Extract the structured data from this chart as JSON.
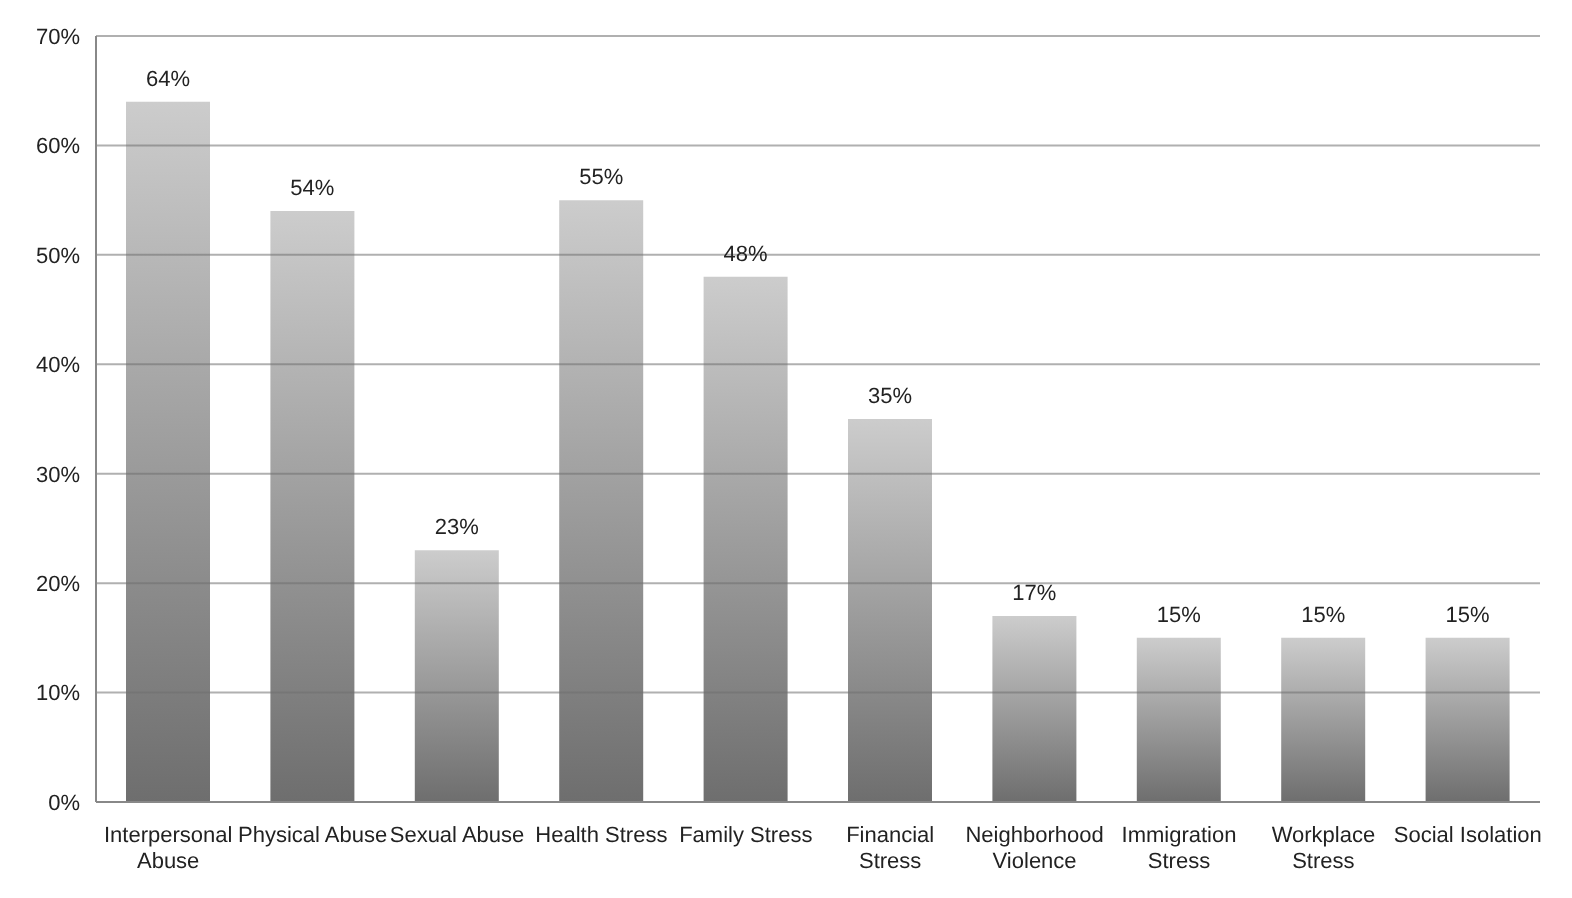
{
  "chart_data": {
    "type": "bar",
    "categories": [
      "Interpersonal Abuse",
      "Physical Abuse",
      "Sexual Abuse",
      "Health Stress",
      "Family Stress",
      "Financial Stress",
      "Neighborhood Violence",
      "Immigration Stress",
      "Workplace Stress",
      "Social Isolation"
    ],
    "values": [
      64,
      54,
      23,
      55,
      48,
      35,
      17,
      15,
      15,
      15
    ],
    "value_labels": [
      "64%",
      "54%",
      "23%",
      "55%",
      "48%",
      "35%",
      "17%",
      "15%",
      "15%",
      "15%"
    ],
    "color": "#6e6e6e",
    "ylim": [
      0,
      70
    ],
    "yticks": [
      {
        "value": 0,
        "label": "0%"
      },
      {
        "value": 10,
        "label": "10%"
      },
      {
        "value": 20,
        "label": "20%"
      },
      {
        "value": 30,
        "label": "30%"
      },
      {
        "value": 40,
        "label": "40%"
      },
      {
        "value": 50,
        "label": "50%"
      },
      {
        "value": 60,
        "label": "60%"
      },
      {
        "value": 70,
        "label": "70%"
      }
    ],
    "grid": "y"
  }
}
